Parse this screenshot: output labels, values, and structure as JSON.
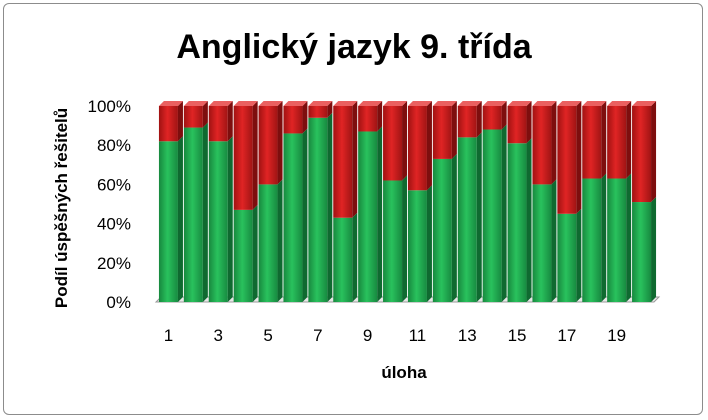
{
  "chart_data": {
    "type": "bar",
    "stacked": true,
    "percent": true,
    "title": "Anglický jazyk 9. třída",
    "xlabel": "úloha",
    "ylabel": "Podíl úspěšných řešitelů",
    "categories": [
      "1",
      "2",
      "3",
      "4",
      "5",
      "6",
      "7",
      "8",
      "9",
      "10",
      "11",
      "12",
      "13",
      "14",
      "15",
      "16",
      "17",
      "18",
      "19",
      "20"
    ],
    "xtick_labels": [
      "1",
      "3",
      "5",
      "7",
      "9",
      "11",
      "13",
      "15",
      "17",
      "19"
    ],
    "ytick_labels": [
      "0%",
      "20%",
      "40%",
      "60%",
      "80%",
      "100%"
    ],
    "ylim": [
      0,
      100
    ],
    "series": [
      {
        "values": [
          82,
          89,
          82,
          47,
          60,
          86,
          94,
          43,
          87,
          62,
          57,
          73,
          84,
          88,
          81,
          60,
          45,
          63,
          63,
          51
        ],
        "color": "#1fa84f"
      },
      {
        "values": [
          18,
          11,
          18,
          53,
          40,
          14,
          6,
          57,
          13,
          38,
          43,
          27,
          16,
          12,
          19,
          40,
          55,
          37,
          37,
          49
        ],
        "color": "#cc1b1b"
      }
    ],
    "grid": false,
    "legend": "none",
    "style": "3d"
  }
}
